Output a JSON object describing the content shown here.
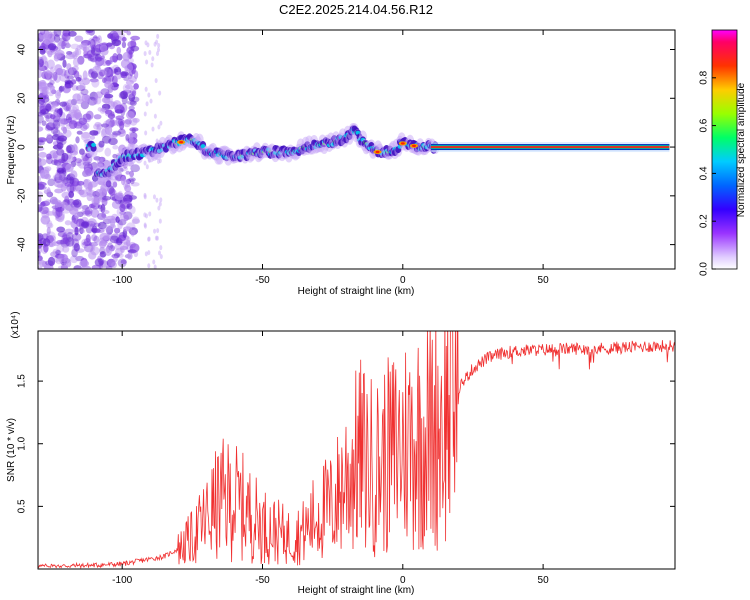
{
  "title": "C2E2.2025.214.04.56.R12",
  "chart_data": [
    {
      "type": "heatmap",
      "xlabel": "Height of straight line (km)",
      "ylabel": "Frequency (Hz)",
      "xlim": [
        -130,
        97
      ],
      "ylim": [
        -50,
        48
      ],
      "xticks": [
        -100,
        -50,
        0,
        50
      ],
      "yticks": [
        -40,
        -20,
        0,
        20,
        40
      ],
      "colorbar": {
        "label": "Normalized spectral amplitude",
        "range": [
          0,
          1
        ],
        "ticks": [
          "0.0",
          "0.2",
          "0.4",
          "0.6",
          "0.8"
        ],
        "colormap": [
          "#ffffff",
          "#cc99ff",
          "#7700dd",
          "#0000ff",
          "#00ccff",
          "#00ff00",
          "#ffff00",
          "#ff6600",
          "#ff0000",
          "#ff00ff"
        ]
      },
      "ridge": [
        [
          -110,
          -12
        ],
        [
          -105,
          -10
        ],
        [
          -100,
          -4
        ],
        [
          -95,
          -3
        ],
        [
          -90,
          -2
        ],
        [
          -85,
          0
        ],
        [
          -80,
          2
        ],
        [
          -75,
          3
        ],
        [
          -72,
          1
        ],
        [
          -70,
          -2
        ],
        [
          -65,
          -3
        ],
        [
          -60,
          -4
        ],
        [
          -55,
          -3
        ],
        [
          -50,
          -2
        ],
        [
          -45,
          -2
        ],
        [
          -40,
          -2
        ],
        [
          -35,
          0
        ],
        [
          -30,
          1
        ],
        [
          -25,
          2
        ],
        [
          -20,
          4
        ],
        [
          -17,
          7
        ],
        [
          -15,
          3
        ],
        [
          -10,
          -1
        ],
        [
          -8,
          -2
        ],
        [
          -5,
          -2
        ],
        [
          -3,
          -1
        ],
        [
          0,
          2
        ],
        [
          3,
          1
        ],
        [
          6,
          0
        ],
        [
          10,
          0
        ],
        [
          20,
          0
        ],
        [
          40,
          0
        ],
        [
          60,
          0
        ],
        [
          80,
          0
        ],
        [
          95,
          0
        ]
      ],
      "grid": false
    },
    {
      "type": "line",
      "xlabel": "Height of straight line (km)",
      "ylabel": "SNR (10 * v/v)",
      "y_multiplier": "(x10⁴)",
      "xlim": [
        -130,
        97
      ],
      "ylim": [
        0,
        1.9
      ],
      "xticks": [
        -100,
        -50,
        0,
        50
      ],
      "yticks": [
        0.5,
        1.0,
        1.5
      ],
      "ytick_labels": [
        "0.5",
        "1.0",
        "1.5"
      ],
      "color": "#f03030",
      "envelope": [
        [
          -130,
          0.02
        ],
        [
          -110,
          0.03
        ],
        [
          -100,
          0.04
        ],
        [
          -90,
          0.08
        ],
        [
          -85,
          0.1
        ],
        [
          -80,
          0.16
        ],
        [
          -75,
          0.25
        ],
        [
          -70,
          0.4
        ],
        [
          -65,
          0.55
        ],
        [
          -60,
          0.55
        ],
        [
          -55,
          0.45
        ],
        [
          -50,
          0.35
        ],
        [
          -45,
          0.3
        ],
        [
          -40,
          0.25
        ],
        [
          -35,
          0.3
        ],
        [
          -30,
          0.45
        ],
        [
          -25,
          0.5
        ],
        [
          -20,
          0.75
        ],
        [
          -15,
          0.9
        ],
        [
          -10,
          0.8
        ],
        [
          -5,
          0.9
        ],
        [
          0,
          1.0
        ],
        [
          5,
          1.05
        ],
        [
          10,
          1.1
        ],
        [
          15,
          1.25
        ],
        [
          20,
          1.45
        ],
        [
          25,
          1.6
        ],
        [
          30,
          1.68
        ],
        [
          35,
          1.72
        ],
        [
          40,
          1.74
        ],
        [
          50,
          1.75
        ],
        [
          60,
          1.76
        ],
        [
          70,
          1.76
        ],
        [
          80,
          1.77
        ],
        [
          90,
          1.78
        ],
        [
          95,
          1.78
        ]
      ],
      "grid": false
    }
  ]
}
